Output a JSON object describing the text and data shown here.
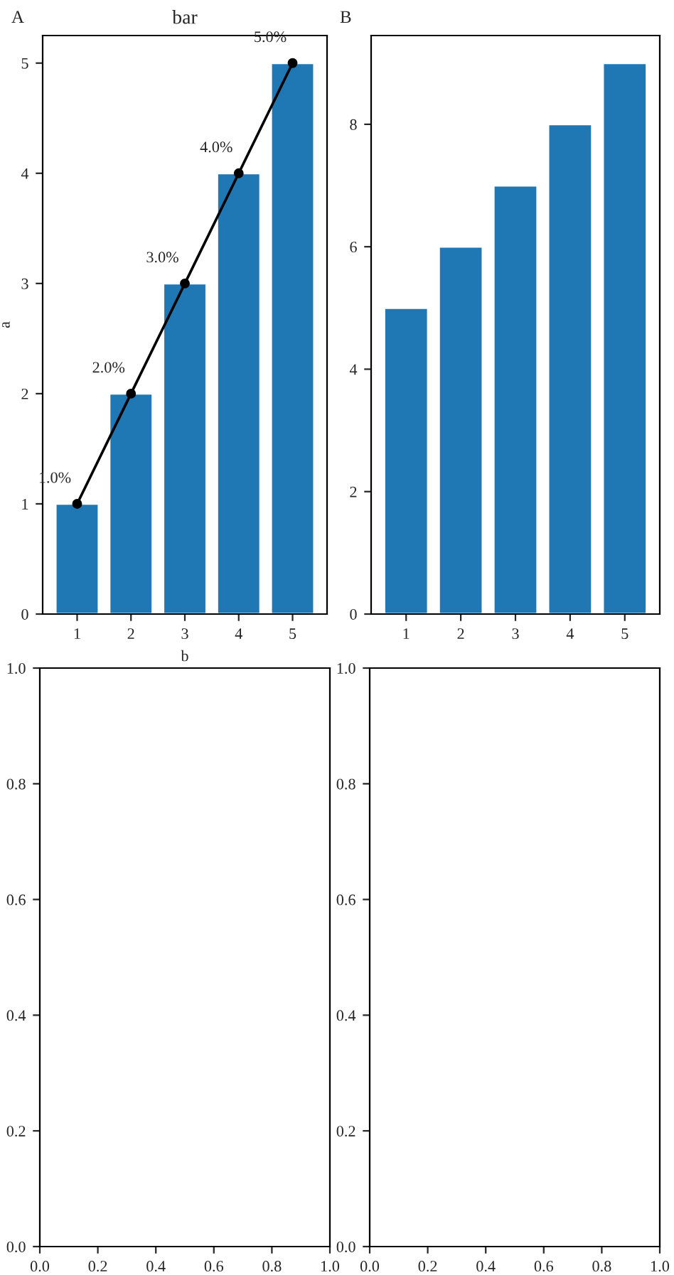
{
  "chart_data": [
    {
      "type": "bar",
      "title": "bar",
      "xlabel": "b",
      "ylabel": "a",
      "annotations": [
        "A"
      ],
      "categories": [
        "1",
        "2",
        "3",
        "4",
        "5"
      ],
      "ylim": [
        0,
        5.25
      ],
      "yticks": [
        0,
        1,
        2,
        3,
        4,
        5
      ],
      "grid": false,
      "legend": false,
      "series": [
        {
          "color": "#1f77b4",
          "values": [
            1,
            2,
            3,
            4,
            5
          ]
        },
        {
          "type": "line",
          "color": "#000000",
          "marker": "circle",
          "line_style": "solid",
          "values": [
            1,
            2,
            3,
            4,
            5
          ],
          "value_labels": [
            "1.0%",
            "2.0%",
            "3.0%",
            "4.0%",
            "5.0%"
          ]
        }
      ]
    },
    {
      "type": "bar",
      "annotations": [
        "B"
      ],
      "categories": [
        "1",
        "2",
        "3",
        "4",
        "5"
      ],
      "ylim": [
        0,
        9.45
      ],
      "yticks": [
        0,
        2,
        4,
        6,
        8
      ],
      "grid": false,
      "legend": false,
      "series": [
        {
          "color": "#1f77b4",
          "values": [
            5,
            6,
            7,
            8,
            9
          ]
        }
      ]
    },
    {
      "type": "line",
      "xlim": [
        0,
        1
      ],
      "ylim": [
        0,
        1
      ],
      "grid": false,
      "legend": false,
      "xticks": [
        {
          "value": 0,
          "label": "0.0"
        },
        {
          "value": 0.2,
          "label": "0.2"
        },
        {
          "value": 0.4,
          "label": "0.4"
        },
        {
          "value": 0.6,
          "label": "0.6"
        },
        {
          "value": 0.8,
          "label": "0.8"
        },
        {
          "value": 1,
          "label": "1.0"
        }
      ],
      "yticks": [
        {
          "value": 0,
          "label": "0.0"
        },
        {
          "value": 0.2,
          "label": "0.2"
        },
        {
          "value": 0.4,
          "label": "0.4"
        },
        {
          "value": 0.6,
          "label": "0.6"
        },
        {
          "value": 0.8,
          "label": "0.8"
        },
        {
          "value": 1,
          "label": "1.0"
        }
      ]
    },
    {
      "type": "line",
      "xlim": [
        0,
        1
      ],
      "ylim": [
        0,
        1
      ],
      "grid": false,
      "legend": false,
      "xticks": [
        {
          "value": 0,
          "label": "0.0"
        },
        {
          "value": 0.2,
          "label": "0.2"
        },
        {
          "value": 0.4,
          "label": "0.4"
        },
        {
          "value": 0.6,
          "label": "0.6"
        },
        {
          "value": 0.8,
          "label": "0.8"
        },
        {
          "value": 1,
          "label": "1.0"
        }
      ],
      "yticks": [
        {
          "value": 0,
          "label": "0.0"
        },
        {
          "value": 0.2,
          "label": "0.2"
        },
        {
          "value": 0.4,
          "label": "0.4"
        },
        {
          "value": 0.6,
          "label": "0.6"
        },
        {
          "value": 0.8,
          "label": "0.8"
        },
        {
          "value": 1,
          "label": "1.0"
        }
      ]
    }
  ]
}
